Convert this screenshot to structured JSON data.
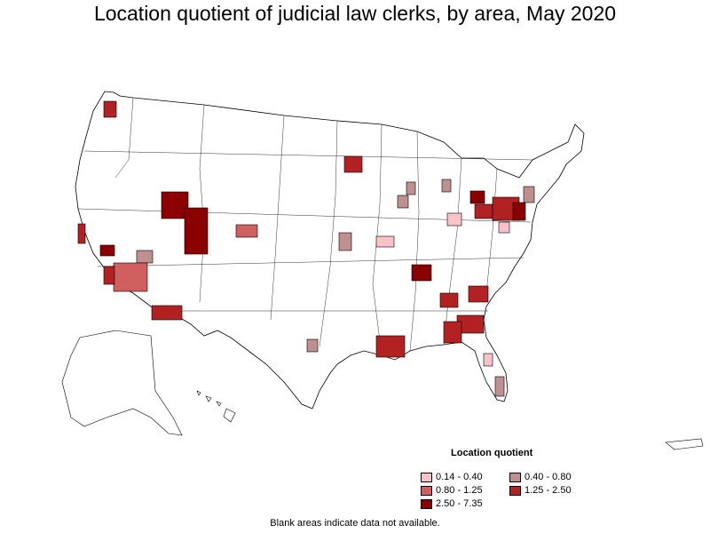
{
  "title": "Location quotient of judicial law clerks, by area, May 2020",
  "legend": {
    "title": "Location quotient",
    "items": [
      {
        "label": "0.14 - 0.40",
        "color": "#f8c2c8"
      },
      {
        "label": "0.40 - 0.80",
        "color": "#c09090"
      },
      {
        "label": "0.80 - 1.25",
        "color": "#d06060"
      },
      {
        "label": "1.25 - 2.50",
        "color": "#b22222"
      },
      {
        "label": "2.50 - 7.35",
        "color": "#8b0000"
      }
    ]
  },
  "footnote": "Blank areas indicate data not available.",
  "colors": {
    "background": "#ffffff",
    "border": "#000000",
    "no_data": "#ffffff"
  }
}
